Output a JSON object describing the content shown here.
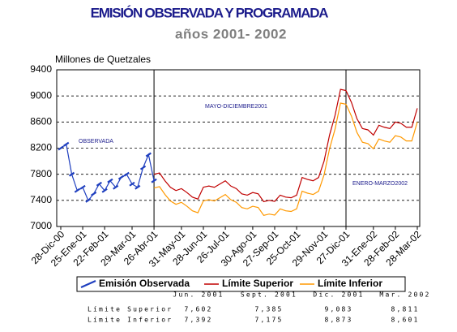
{
  "chart_data": {
    "type": "line",
    "title": "EMISIÓN OBSERVADA Y PROGRAMADA",
    "subtitle": "años 2001- 2002",
    "y_label": "Millones de Quetzales",
    "categories": [
      "28-Dic-00",
      null,
      null,
      null,
      "25-Ene-01",
      null,
      null,
      null,
      "22-Feb-01",
      null,
      null,
      null,
      null,
      "29-Mar-01",
      null,
      null,
      null,
      "26-Abr-01",
      null,
      null,
      null,
      null,
      "31-May-01",
      null,
      null,
      null,
      "28-Jun-01",
      null,
      null,
      null,
      "26-Jul-01",
      null,
      null,
      null,
      null,
      "30-Ago-01",
      null,
      null,
      null,
      "27-Sep-01",
      null,
      null,
      null,
      "25-Oct-01",
      null,
      null,
      null,
      null,
      "29-Nov-01",
      null,
      null,
      null,
      "27-Dic-01",
      null,
      null,
      null,
      null,
      "31-Ene-02",
      null,
      null,
      null,
      "28-Feb-02",
      null,
      null,
      null,
      "28-Mar-02"
    ],
    "series": [
      {
        "name": "Emisión Observada",
        "color": "#1f3fbf",
        "values": [
          8200,
          8260,
          7800,
          7550,
          7600,
          7400,
          7500,
          7650,
          7550,
          7700,
          7600,
          7750,
          7800,
          7650,
          7600,
          7900,
          8100,
          7700,
          null,
          null,
          null,
          null,
          null,
          null,
          null,
          null,
          null,
          null,
          null,
          null,
          null,
          null,
          null,
          null,
          null,
          null,
          null,
          null,
          null,
          null,
          null,
          null,
          null,
          null,
          null,
          null,
          null,
          null,
          null,
          null,
          null,
          null,
          null,
          null,
          null,
          null,
          null,
          null,
          null,
          null,
          null,
          null,
          null,
          null,
          null,
          null
        ]
      },
      {
        "name": "Límite Superior",
        "color": "#c00000",
        "values": [
          null,
          null,
          null,
          null,
          null,
          null,
          null,
          null,
          null,
          null,
          null,
          null,
          null,
          null,
          null,
          null,
          null,
          7800,
          7820,
          7700,
          7600,
          7550,
          7580,
          7520,
          7450,
          7420,
          7602,
          7620,
          7600,
          7650,
          7700,
          7620,
          7580,
          7500,
          7480,
          7520,
          7500,
          7380,
          7400,
          7385,
          7480,
          7450,
          7440,
          7480,
          7750,
          7720,
          7700,
          7750,
          8000,
          8400,
          8700,
          9100,
          9083,
          8900,
          8650,
          8500,
          8480,
          8400,
          8550,
          8520,
          8500,
          8600,
          8580,
          8520,
          8520,
          8811
        ]
      },
      {
        "name": "Límite Inferior",
        "color": "#ff9900",
        "values": [
          null,
          null,
          null,
          null,
          null,
          null,
          null,
          null,
          null,
          null,
          null,
          null,
          null,
          null,
          null,
          null,
          null,
          7590,
          7610,
          7490,
          7390,
          7340,
          7370,
          7310,
          7240,
          7210,
          7392,
          7410,
          7390,
          7440,
          7490,
          7410,
          7370,
          7290,
          7270,
          7310,
          7290,
          7170,
          7190,
          7175,
          7270,
          7240,
          7230,
          7270,
          7540,
          7510,
          7490,
          7540,
          7790,
          8190,
          8490,
          8890,
          8873,
          8690,
          8440,
          8290,
          8270,
          8190,
          8340,
          8310,
          8290,
          8390,
          8370,
          8310,
          8310,
          8601
        ]
      }
    ],
    "ylim": [
      7000,
      9400
    ],
    "yticks": [
      7000,
      7400,
      7800,
      8200,
      8600,
      9000,
      9400
    ],
    "grid": true,
    "annotations": [
      {
        "text": "OBSERVADA"
      },
      {
        "text": "MAYO-DICIEMBRE2001"
      },
      {
        "text": "ENERO-MARZO2002"
      }
    ]
  },
  "table": {
    "header": [
      "Jun. 2001",
      "Sept. 2001",
      "Dic. 2001",
      "Mar. 2002"
    ],
    "rows": [
      [
        "Límite Superior",
        "7,602",
        "7,385",
        "9,083",
        "8,811"
      ],
      [
        "Límite Inferior",
        "7,392",
        "7,175",
        "8,873",
        "8,601"
      ]
    ]
  }
}
